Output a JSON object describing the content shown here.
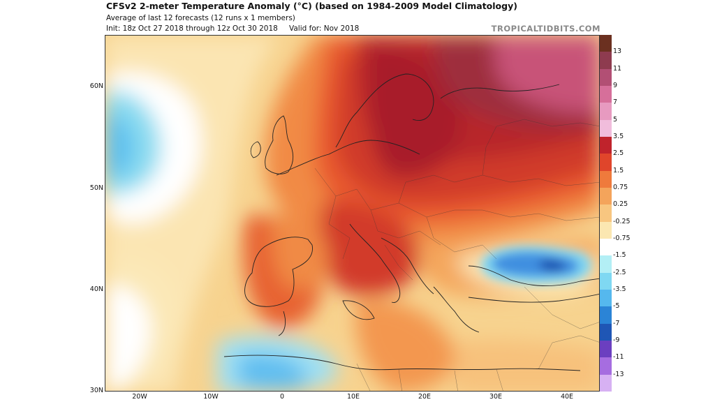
{
  "header": {
    "title": "CFSv2 2-meter Temperature Anomaly (°C) (based on 1984-2009 Model Climatology)",
    "subtitle": "Average of last 12 forecasts (12 runs x 1 members)",
    "init": "Init: 18z Oct 27 2018 through 12z Oct 30 2018",
    "valid": "Valid for: Nov 2018",
    "brand": "TROPICALTIDBITS.COM"
  },
  "map": {
    "lat_labels": [
      "60N",
      "50N",
      "40N",
      "30N"
    ],
    "lon_labels": [
      "20W",
      "10W",
      "0",
      "10E",
      "20E",
      "30E",
      "40E"
    ]
  },
  "colorbar": {
    "labels": [
      "13",
      "11",
      "9",
      "7",
      "5",
      "3.5",
      "2.5",
      "1.5",
      "0.75",
      "0.25",
      "-0.25",
      "-0.75",
      "-1.5",
      "-2.5",
      "-3.5",
      "-5",
      "-7",
      "-9",
      "-11",
      "-13"
    ],
    "colors": [
      "#6b3020",
      "#8e3b4f",
      "#b24f74",
      "#d66f9a",
      "#e79ac0",
      "#f1bddc",
      "#c0232c",
      "#e0452b",
      "#ef7a3c",
      "#f4a45b",
      "#f8c680",
      "#fbe7b1",
      "#ffffff",
      "#b3eff5",
      "#7fd8f2",
      "#55b8ee",
      "#2b84d6",
      "#1f56b5",
      "#6b3fc0",
      "#a66de0",
      "#d7b1f3"
    ]
  }
}
